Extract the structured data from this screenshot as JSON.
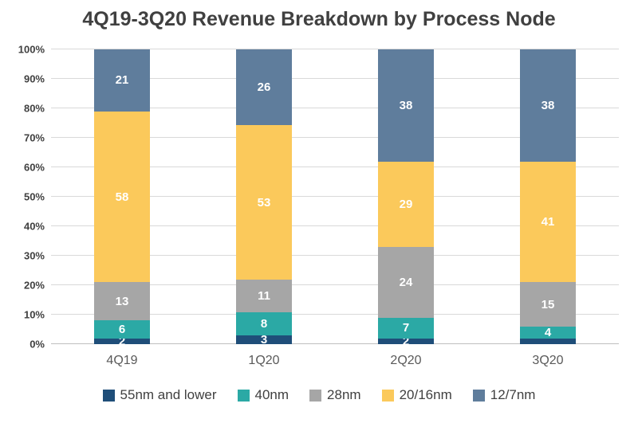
{
  "chart_data": {
    "type": "bar",
    "stacked": true,
    "percent": true,
    "title": "4Q19-3Q20 Revenue Breakdown by Process Node",
    "categories": [
      "4Q19",
      "1Q20",
      "2Q20",
      "3Q20"
    ],
    "series": [
      {
        "name": "55nm and lower",
        "color": "#1F4E79",
        "values": [
          2,
          3,
          2,
          2
        ],
        "labels": [
          "2",
          "3",
          "2",
          ""
        ]
      },
      {
        "name": "40nm",
        "color": "#2BA9A5",
        "values": [
          6,
          8,
          7,
          4
        ],
        "labels": [
          "6",
          "8",
          "7",
          "4"
        ]
      },
      {
        "name": "28nm",
        "color": "#A6A6A6",
        "values": [
          13,
          11,
          24,
          15
        ],
        "labels": [
          "13",
          "11",
          "24",
          "15"
        ]
      },
      {
        "name": "20/16nm",
        "color": "#FBC95B",
        "values": [
          58,
          53,
          29,
          41
        ],
        "labels": [
          "58",
          "53",
          "29",
          "41"
        ]
      },
      {
        "name": "12/7nm",
        "color": "#5F7D9C",
        "values": [
          21,
          26,
          38,
          38
        ],
        "labels": [
          "21",
          "26",
          "38",
          "38"
        ]
      }
    ],
    "y_axis": {
      "min": 0,
      "max": 100,
      "ticks": [
        "0%",
        "10%",
        "20%",
        "30%",
        "40%",
        "50%",
        "60%",
        "70%",
        "80%",
        "90%",
        "100%"
      ]
    },
    "xlabel": "",
    "ylabel": "",
    "grid": true,
    "legend_position": "bottom",
    "data_label_color": "#ffffff",
    "gridline_color": "#D9D9D9"
  }
}
